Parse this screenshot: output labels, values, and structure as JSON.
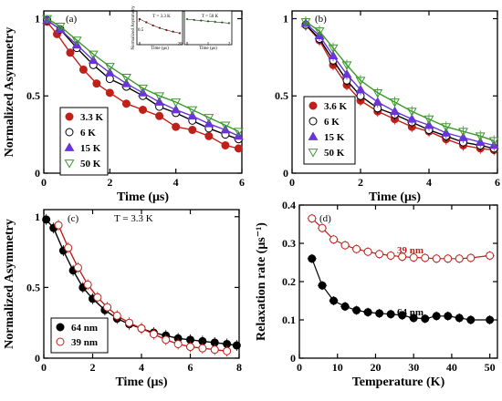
{
  "chart_data": [
    {
      "panel": "a",
      "label": "(a)",
      "type": "scatter",
      "xlabel": "Time (μs)",
      "ylabel": "Normalized Asymmetry",
      "xlim": [
        0,
        6
      ],
      "ylim": [
        0,
        1.05
      ],
      "xticks": [
        "0",
        "2",
        "4",
        "6"
      ],
      "yticks": [
        "0",
        "0.5",
        "1"
      ],
      "legend_position": "bottom-left",
      "series": [
        {
          "name": "3.3 K",
          "marker": "filled-circle",
          "color": "#c0201a",
          "x": [
            0.1,
            0.4,
            0.8,
            1.2,
            1.6,
            2.0,
            2.5,
            3.0,
            3.5,
            4.0,
            4.5,
            5.0,
            5.5,
            5.9
          ],
          "y": [
            0.98,
            0.9,
            0.78,
            0.67,
            0.58,
            0.52,
            0.45,
            0.41,
            0.37,
            0.3,
            0.28,
            0.24,
            0.18,
            0.16
          ]
        },
        {
          "name": "6 K",
          "marker": "open-circle",
          "color": "#000000",
          "x": [
            0.1,
            0.5,
            1.0,
            1.5,
            2.0,
            2.5,
            3.0,
            3.5,
            4.0,
            4.5,
            5.0,
            5.5,
            5.9
          ],
          "y": [
            0.99,
            0.93,
            0.81,
            0.7,
            0.61,
            0.56,
            0.5,
            0.43,
            0.39,
            0.34,
            0.29,
            0.25,
            0.22
          ]
        },
        {
          "name": "15 K",
          "marker": "filled-triangle",
          "color": "#6a35d8",
          "x": [
            0.1,
            0.5,
            1.0,
            1.5,
            2.0,
            2.5,
            3.0,
            3.5,
            4.0,
            4.5,
            5.0,
            5.5,
            5.9
          ],
          "y": [
            0.99,
            0.93,
            0.83,
            0.73,
            0.65,
            0.58,
            0.52,
            0.46,
            0.41,
            0.37,
            0.32,
            0.28,
            0.24
          ]
        },
        {
          "name": "50 K",
          "marker": "open-triangle-down",
          "color": "#3a9a2a",
          "x": [
            0.1,
            0.5,
            1.0,
            1.5,
            2.0,
            2.5,
            3.0,
            3.5,
            4.0,
            4.5,
            5.0,
            5.5,
            5.9
          ],
          "y": [
            1.0,
            0.95,
            0.86,
            0.77,
            0.69,
            0.62,
            0.55,
            0.5,
            0.46,
            0.41,
            0.36,
            0.31,
            0.27
          ]
        }
      ],
      "insets": [
        {
          "title": "T = 3.3 K",
          "ylabel": "Normalized Asymmetry",
          "xlabel": "Time (μs)",
          "color": "#c0201a",
          "y": [
            1.0,
            0.85,
            0.7,
            0.58,
            0.48,
            0.4,
            0.33
          ],
          "xticks": [
            "0",
            "20"
          ],
          "yticks": [
            "1",
            "0.5"
          ]
        },
        {
          "title": "T = 50 K",
          "xlabel": "Time (μs)",
          "color": "#3a9a2a",
          "y": [
            1.0,
            0.96,
            0.93,
            0.9,
            0.87,
            0.84,
            0.81
          ],
          "xticks": [
            "0",
            "1",
            "2"
          ]
        }
      ]
    },
    {
      "panel": "b",
      "label": "(b)",
      "type": "scatter",
      "xlabel": "Time (μs)",
      "ylabel": "",
      "xlim": [
        0,
        6
      ],
      "ylim": [
        0,
        1.05
      ],
      "xticks": [
        "0",
        "2",
        "4",
        "6"
      ],
      "yticks": [
        "0",
        "0.5",
        "1"
      ],
      "legend_position": "bottom-left",
      "series": [
        {
          "name": "3.6 K",
          "marker": "filled-circle",
          "color": "#c0201a",
          "x": [
            0.4,
            0.8,
            1.2,
            1.6,
            2.0,
            2.5,
            3.0,
            3.5,
            4.0,
            4.5,
            5.0,
            5.5,
            5.9
          ],
          "y": [
            0.96,
            0.86,
            0.7,
            0.57,
            0.47,
            0.4,
            0.35,
            0.3,
            0.27,
            0.22,
            0.18,
            0.16,
            0.15
          ]
        },
        {
          "name": "6 K",
          "marker": "open-circle",
          "color": "#000000",
          "x": [
            0.4,
            0.8,
            1.2,
            1.6,
            2.0,
            2.5,
            3.0,
            3.5,
            4.0,
            4.5,
            5.0,
            5.5,
            5.9
          ],
          "y": [
            0.96,
            0.87,
            0.73,
            0.6,
            0.5,
            0.42,
            0.38,
            0.33,
            0.28,
            0.24,
            0.2,
            0.18,
            0.16
          ]
        },
        {
          "name": "15 K",
          "marker": "filled-triangle",
          "color": "#6a35d8",
          "x": [
            0.4,
            0.8,
            1.2,
            1.6,
            2.0,
            2.5,
            3.0,
            3.5,
            4.0,
            4.5,
            5.0,
            5.5,
            5.9
          ],
          "y": [
            0.97,
            0.89,
            0.76,
            0.64,
            0.54,
            0.46,
            0.4,
            0.35,
            0.31,
            0.26,
            0.23,
            0.2,
            0.18
          ]
        },
        {
          "name": "50 K",
          "marker": "open-triangle-down",
          "color": "#3a9a2a",
          "x": [
            0.4,
            0.8,
            1.2,
            1.6,
            2.0,
            2.5,
            3.0,
            3.5,
            4.0,
            4.5,
            5.0,
            5.5,
            5.9
          ],
          "y": [
            0.98,
            0.92,
            0.81,
            0.7,
            0.6,
            0.52,
            0.46,
            0.4,
            0.35,
            0.3,
            0.27,
            0.24,
            0.21
          ]
        }
      ]
    },
    {
      "panel": "c",
      "label": "(c)",
      "annotation": "T = 3.3 K",
      "type": "scatter",
      "xlabel": "Time (μs)",
      "ylabel": "Normalized Asymmetry",
      "xlim": [
        0,
        8
      ],
      "ylim": [
        0,
        1.05
      ],
      "xticks": [
        "0",
        "2",
        "4",
        "6",
        "8"
      ],
      "yticks": [
        "0",
        "0.5",
        "1"
      ],
      "legend_position": "bottom-left",
      "series": [
        {
          "name": "64 nm",
          "marker": "filled-circle",
          "color": "#000000",
          "x": [
            0.1,
            0.4,
            0.8,
            1.2,
            1.6,
            2.0,
            2.5,
            3.0,
            3.5,
            4.0,
            4.5,
            5.0,
            5.5,
            6.0,
            6.5,
            7.0,
            7.5,
            7.9
          ],
          "y": [
            0.98,
            0.92,
            0.76,
            0.62,
            0.5,
            0.42,
            0.34,
            0.28,
            0.24,
            0.21,
            0.18,
            0.16,
            0.14,
            0.13,
            0.12,
            0.11,
            0.1,
            0.09
          ]
        },
        {
          "name": "39 nm",
          "marker": "open-circle",
          "color": "#c0201a",
          "x": [
            0.6,
            1.0,
            1.4,
            1.8,
            2.2,
            2.6,
            3.0,
            3.5,
            4.0,
            4.5,
            5.0,
            5.5,
            6.0,
            6.5,
            7.0,
            7.5
          ],
          "y": [
            0.94,
            0.78,
            0.64,
            0.52,
            0.43,
            0.36,
            0.3,
            0.25,
            0.21,
            0.17,
            0.13,
            0.1,
            0.08,
            0.07,
            0.06,
            0.05
          ]
        }
      ]
    },
    {
      "panel": "d",
      "label": "(d)",
      "type": "line",
      "xlabel": "Temperature (K)",
      "ylabel": "Relaxation rate (μs⁻¹)",
      "xlim": [
        0,
        52
      ],
      "ylim": [
        0,
        0.4
      ],
      "xticks": [
        "0",
        "10",
        "20",
        "30",
        "40",
        "50"
      ],
      "yticks": [
        "0",
        "0.1",
        "0.2",
        "0.3",
        "0.4"
      ],
      "series": [
        {
          "name": "39 nm",
          "marker": "open-circle",
          "color": "#c0201a",
          "x": [
            3.3,
            6,
            9,
            12,
            15,
            18,
            21,
            24,
            27,
            30,
            33,
            36,
            39,
            42,
            45,
            50
          ],
          "y": [
            0.365,
            0.34,
            0.31,
            0.295,
            0.285,
            0.278,
            0.272,
            0.268,
            0.265,
            0.263,
            0.262,
            0.26,
            0.26,
            0.26,
            0.262,
            0.268
          ]
        },
        {
          "name": "64 nm",
          "marker": "filled-circle",
          "color": "#000000",
          "x": [
            3.3,
            6,
            9,
            12,
            15,
            18,
            21,
            24,
            27,
            30,
            33,
            36,
            39,
            42,
            45,
            50
          ],
          "y": [
            0.26,
            0.19,
            0.15,
            0.135,
            0.125,
            0.12,
            0.117,
            0.115,
            0.112,
            0.105,
            0.103,
            0.11,
            0.11,
            0.105,
            0.1,
            0.1
          ]
        }
      ]
    }
  ]
}
